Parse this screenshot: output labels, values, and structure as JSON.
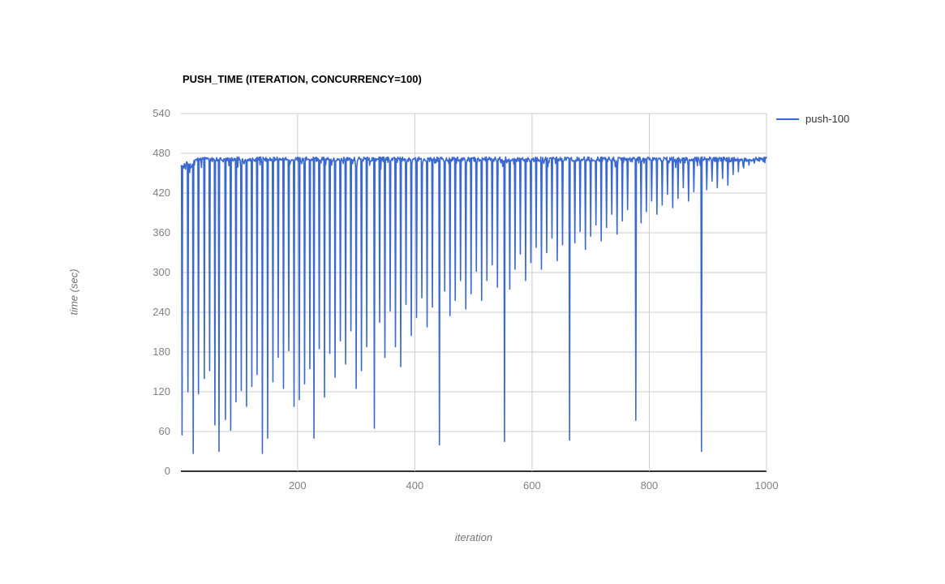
{
  "chart_data": {
    "type": "line",
    "title": "PUSH_TIME (ITERATION, CONCURRENCY=100)",
    "xlabel": "iteration",
    "ylabel": "time (sec)",
    "series_name": "push-100",
    "color": "#3b69cf",
    "grid_color": "#cccccc",
    "axis_line_color": "#333333",
    "tick_color": "#808080",
    "axis_title_color": "#757575",
    "legend_text_color": "#333333",
    "legend_position": "right",
    "grid": true,
    "xlim": [
      1,
      1000
    ],
    "ylim": [
      0,
      540
    ],
    "x_ticks": [
      200,
      400,
      600,
      800,
      1000
    ],
    "y_ticks": [
      540,
      480,
      420,
      360,
      300,
      240,
      180,
      120,
      60,
      0
    ],
    "baseline": 471,
    "baseline_noise": 3.5,
    "description": "Time per push iteration holds a plateau near 471 sec with frequent single-iteration downward spikes roughly every 9-10 iterations; spike depth shrinks as iteration grows (bottoms rise from ~25 sec toward ~465 sec), with very deep outlier spikes near iterations 228, 331, 442, 553, 664, 777 and 889.",
    "spikes": [
      [
        3,
        55
      ],
      [
        13,
        120
      ],
      [
        22,
        27
      ],
      [
        31,
        117
      ],
      [
        41,
        140
      ],
      [
        50,
        152
      ],
      [
        59,
        70
      ],
      [
        66,
        30
      ],
      [
        77,
        78
      ],
      [
        86,
        62
      ],
      [
        95,
        105
      ],
      [
        104,
        122
      ],
      [
        113,
        98
      ],
      [
        122,
        128
      ],
      [
        131,
        146
      ],
      [
        140,
        27
      ],
      [
        149,
        50
      ],
      [
        158,
        135
      ],
      [
        167,
        172
      ],
      [
        176,
        125
      ],
      [
        185,
        182
      ],
      [
        194,
        98
      ],
      [
        203,
        108
      ],
      [
        212,
        132
      ],
      [
        221,
        155
      ],
      [
        228,
        50
      ],
      [
        237,
        185
      ],
      [
        246,
        112
      ],
      [
        255,
        178
      ],
      [
        264,
        142
      ],
      [
        273,
        197
      ],
      [
        282,
        162
      ],
      [
        291,
        212
      ],
      [
        300,
        125
      ],
      [
        309,
        152
      ],
      [
        318,
        188
      ],
      [
        331,
        65
      ],
      [
        340,
        225
      ],
      [
        349,
        172
      ],
      [
        358,
        242
      ],
      [
        367,
        188
      ],
      [
        376,
        158
      ],
      [
        385,
        252
      ],
      [
        394,
        205
      ],
      [
        403,
        232
      ],
      [
        412,
        262
      ],
      [
        421,
        218
      ],
      [
        430,
        248
      ],
      [
        442,
        40
      ],
      [
        451,
        272
      ],
      [
        460,
        235
      ],
      [
        469,
        258
      ],
      [
        478,
        288
      ],
      [
        487,
        245
      ],
      [
        496,
        268
      ],
      [
        505,
        302
      ],
      [
        514,
        258
      ],
      [
        523,
        288
      ],
      [
        532,
        312
      ],
      [
        541,
        278
      ],
      [
        553,
        45
      ],
      [
        562,
        275
      ],
      [
        571,
        305
      ],
      [
        580,
        328
      ],
      [
        589,
        288
      ],
      [
        598,
        315
      ],
      [
        607,
        338
      ],
      [
        616,
        305
      ],
      [
        625,
        330
      ],
      [
        634,
        352
      ],
      [
        643,
        318
      ],
      [
        652,
        342
      ],
      [
        664,
        47
      ],
      [
        673,
        345
      ],
      [
        682,
        362
      ],
      [
        691,
        335
      ],
      [
        700,
        355
      ],
      [
        709,
        372
      ],
      [
        718,
        348
      ],
      [
        727,
        368
      ],
      [
        736,
        388
      ],
      [
        745,
        358
      ],
      [
        754,
        378
      ],
      [
        763,
        395
      ],
      [
        777,
        77
      ],
      [
        786,
        375
      ],
      [
        795,
        392
      ],
      [
        804,
        408
      ],
      [
        813,
        388
      ],
      [
        822,
        402
      ],
      [
        831,
        418
      ],
      [
        840,
        398
      ],
      [
        849,
        412
      ],
      [
        858,
        428
      ],
      [
        867,
        408
      ],
      [
        876,
        422
      ],
      [
        889,
        30
      ],
      [
        898,
        425
      ],
      [
        907,
        438
      ],
      [
        916,
        428
      ],
      [
        925,
        442
      ],
      [
        934,
        432
      ],
      [
        943,
        448
      ],
      [
        952,
        452
      ],
      [
        961,
        458
      ],
      [
        970,
        462
      ],
      [
        979,
        465
      ],
      [
        988,
        468
      ]
    ]
  }
}
